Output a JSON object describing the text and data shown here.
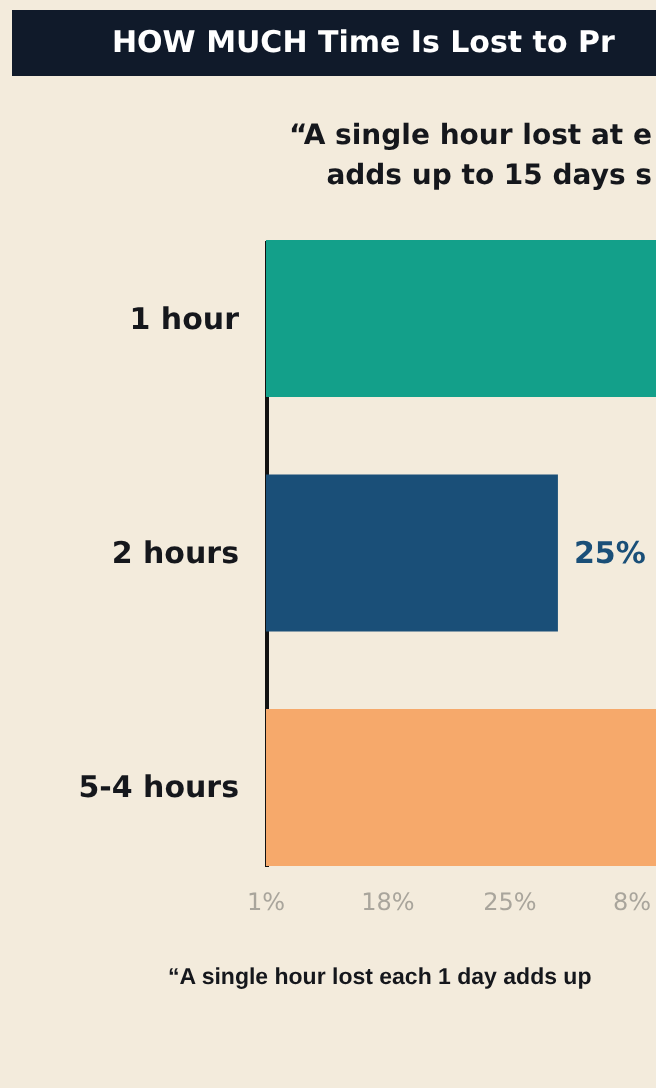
{
  "chart_data": {
    "type": "bar",
    "orientation": "horizontal",
    "xlim": [
      0,
      33.4
    ],
    "title": "HOW MUCH Time Is Lost to Pr",
    "subtitle": "“A single hour lost at e\nadds up to 15 days s",
    "annotations": [
      "1%",
      "18%",
      "25%",
      "8%",
      "“A single hour lost each 1 day adds up"
    ],
    "categories": [
      "1 hour",
      "2 hours",
      "5-4 hours"
    ],
    "values": [
      33.4,
      25,
      33.4
    ],
    "colors": [
      "#13a08a",
      "#1a4f78",
      "#f6a96b"
    ],
    "value_labels": [
      null,
      "25%",
      null
    ]
  }
}
